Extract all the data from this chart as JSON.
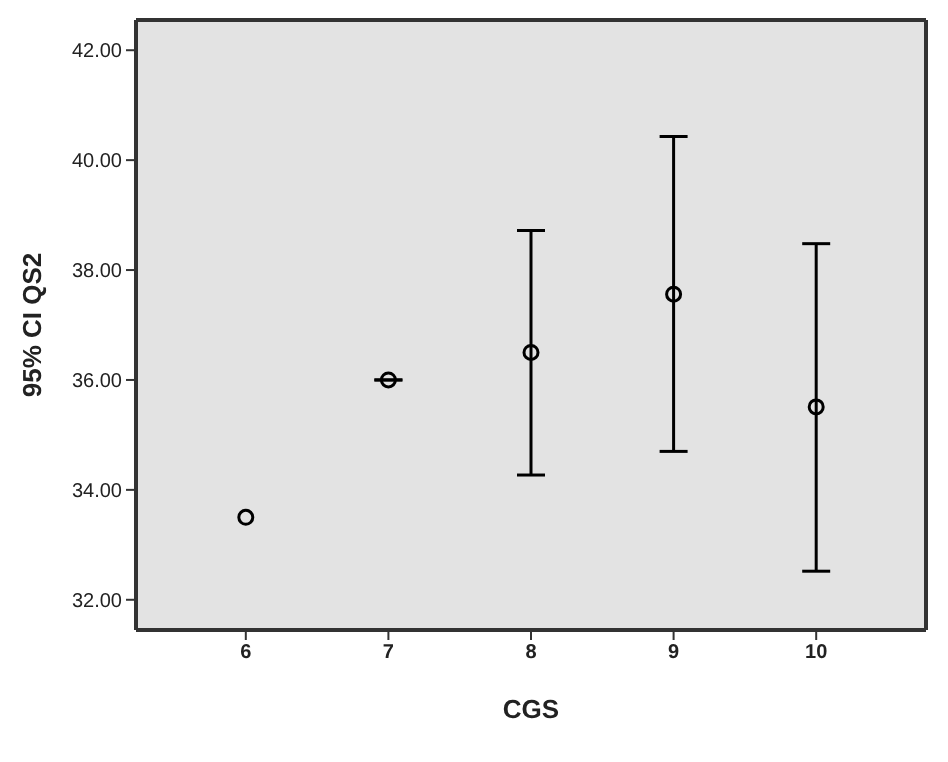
{
  "chart_data": {
    "type": "scatter",
    "xlabel": "CGS",
    "ylabel": "95% CI QS2",
    "categories": [
      "6",
      "7",
      "8",
      "9",
      "10"
    ],
    "series": [
      {
        "color": "#000000",
        "values": [
          33.5,
          36.0,
          36.5,
          37.56,
          35.51
        ],
        "errors": [
          null,
          [
            36.0,
            36.0
          ],
          [
            34.27,
            38.72
          ],
          [
            34.7,
            40.43
          ],
          [
            32.52,
            38.48
          ]
        ]
      }
    ],
    "ylim": [
      31.45,
      42.55
    ],
    "yticks": [
      {
        "value": 32,
        "label": "32.00"
      },
      {
        "value": 34,
        "label": "34.00"
      },
      {
        "value": 36,
        "label": "36.00"
      },
      {
        "value": 38,
        "label": "38.00"
      },
      {
        "value": 40,
        "label": "40.00"
      },
      {
        "value": 42,
        "label": "42.00"
      }
    ],
    "marker": "circle",
    "grid": false
  }
}
